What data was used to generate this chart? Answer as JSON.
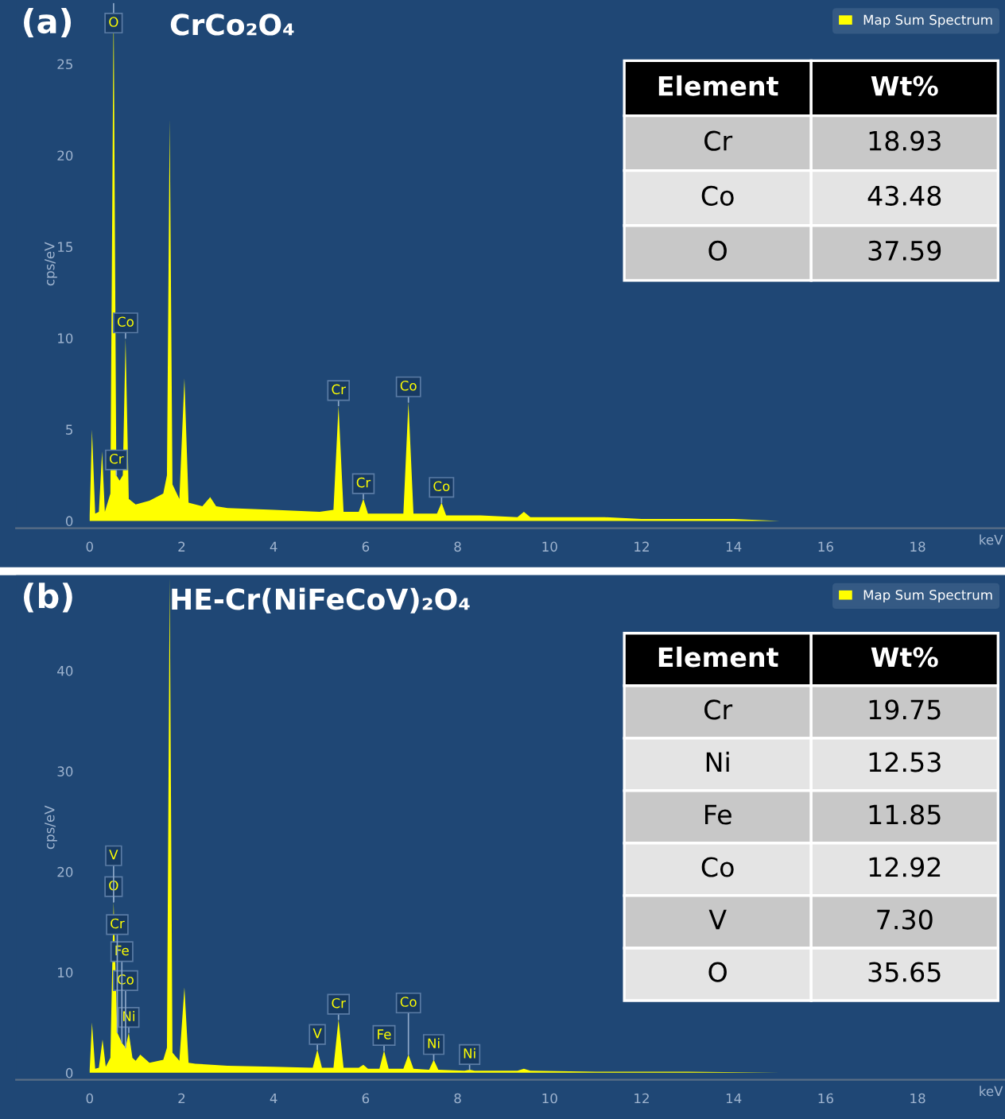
{
  "chart_data": [
    {
      "type": "area",
      "title": "(a)",
      "subtitle": "CrCo₂O₄",
      "xlabel": "keV",
      "ylabel": "cps/eV",
      "xlim": [
        -1.6,
        19.9
      ],
      "ylim": [
        -0.4,
        28.5
      ],
      "xticks": [
        0,
        2,
        4,
        6,
        8,
        10,
        12,
        14,
        16,
        18
      ],
      "yticks": [
        0,
        5,
        10,
        15,
        20,
        25
      ],
      "legend": "top right",
      "grid": false,
      "series": [
        {
          "name": "Map Sum Spectrum",
          "color": "#ffff00",
          "x": [
            0,
            0.05,
            0.12,
            0.2,
            0.27,
            0.33,
            0.45,
            0.52,
            0.58,
            0.65,
            0.72,
            0.78,
            0.85,
            1.0,
            1.3,
            1.6,
            1.68,
            1.74,
            1.8,
            1.95,
            2.06,
            2.15,
            2.3,
            2.45,
            2.62,
            2.75,
            3.0,
            4.0,
            5.0,
            5.3,
            5.41,
            5.52,
            5.85,
            5.95,
            6.05,
            6.5,
            6.82,
            6.93,
            7.04,
            7.55,
            7.65,
            7.75,
            8.5,
            9.3,
            9.44,
            9.58,
            10.5,
            11.2,
            12,
            13,
            14,
            15
          ],
          "values": [
            0.3,
            5,
            0.4,
            0.5,
            3.8,
            0.5,
            1.5,
            28.3,
            2.5,
            2.2,
            2.5,
            10,
            1.2,
            0.9,
            1.1,
            1.5,
            2.5,
            22,
            2,
            1.2,
            7.8,
            1.0,
            0.9,
            0.8,
            1.3,
            0.8,
            0.7,
            0.6,
            0.5,
            0.6,
            6.3,
            0.5,
            0.5,
            1.2,
            0.4,
            0.4,
            0.4,
            6.5,
            0.4,
            0.4,
            1.0,
            0.3,
            0.3,
            0.2,
            0.5,
            0.2,
            0.2,
            0.2,
            0.1,
            0.1,
            0.1,
            0
          ]
        }
      ],
      "annotations": [
        {
          "text": "O",
          "x": 0.52,
          "y": 28.3
        },
        {
          "text": "Co",
          "x": 0.78,
          "y": 10
        },
        {
          "text": "Cr",
          "x": 0.58,
          "y": 2.5
        },
        {
          "text": "Cr",
          "x": 5.41,
          "y": 6.3
        },
        {
          "text": "Cr",
          "x": 5.95,
          "y": 1.2
        },
        {
          "text": "Co",
          "x": 6.93,
          "y": 6.5
        },
        {
          "text": "Co",
          "x": 7.65,
          "y": 1.0
        },
        "Element",
        "Wt%",
        "Cr",
        "18.93",
        "Co",
        "43.48",
        "O",
        "37.59"
      ]
    },
    {
      "type": "area",
      "title": "(b)",
      "subtitle": "HE-Cr(NiFeCoV)₂O₄",
      "xlabel": "keV",
      "ylabel": "cps/eV",
      "xlim": [
        -1.6,
        19.9
      ],
      "ylim": [
        -0.7,
        49.5
      ],
      "xticks": [
        0,
        2,
        4,
        6,
        8,
        10,
        12,
        14,
        16,
        18
      ],
      "yticks": [
        0,
        10,
        20,
        30,
        40
      ],
      "legend": "top right",
      "grid": false,
      "series": [
        {
          "name": "Map Sum Spectrum",
          "color": "#ffff00",
          "x": [
            0,
            0.05,
            0.12,
            0.2,
            0.28,
            0.35,
            0.45,
            0.52,
            0.6,
            0.7,
            0.78,
            0.85,
            0.93,
            1.0,
            1.1,
            1.3,
            1.6,
            1.68,
            1.74,
            1.8,
            1.95,
            2.06,
            2.15,
            2.3,
            3.0,
            4.0,
            4.85,
            4.95,
            5.05,
            5.3,
            5.41,
            5.52,
            5.85,
            5.95,
            6.05,
            6.3,
            6.4,
            6.5,
            6.82,
            6.93,
            7.04,
            7.38,
            7.48,
            7.58,
            8.15,
            8.26,
            8.37,
            9.3,
            9.44,
            9.58,
            11,
            13,
            15
          ],
          "values": [
            0.3,
            5,
            0.4,
            0.5,
            3.3,
            0.6,
            1.5,
            17,
            4,
            3,
            2.5,
            4,
            1.5,
            1.2,
            1.8,
            1.0,
            1.3,
            2.5,
            49.3,
            2,
            1.2,
            8.5,
            1.0,
            0.9,
            0.7,
            0.6,
            0.5,
            2.3,
            0.5,
            0.5,
            5.3,
            0.5,
            0.5,
            0.8,
            0.4,
            0.4,
            2.2,
            0.4,
            0.4,
            1.8,
            0.4,
            0.3,
            1.3,
            0.3,
            0.2,
            0.3,
            0.2,
            0.2,
            0.4,
            0.2,
            0.1,
            0.1,
            0
          ]
        }
      ],
      "annotations": [
        {
          "text": "O",
          "x": 0.52,
          "y": 17
        },
        {
          "text": "V",
          "x": 0.52,
          "y": 17
        },
        {
          "text": "Ni",
          "x": 0.85,
          "y": 4
        },
        {
          "text": "Co",
          "x": 0.78,
          "y": 2.5
        },
        {
          "text": "Fe",
          "x": 0.7,
          "y": 3
        },
        {
          "text": "Cr",
          "x": 0.6,
          "y": 4
        },
        {
          "text": "V",
          "x": 4.95,
          "y": 2.3
        },
        {
          "text": "Cr",
          "x": 5.41,
          "y": 5.3
        },
        {
          "text": "Fe",
          "x": 6.4,
          "y": 2.2
        },
        {
          "text": "Co",
          "x": 6.93,
          "y": 1.8
        },
        {
          "text": "Ni",
          "x": 7.48,
          "y": 1.3
        },
        {
          "text": "Ni",
          "x": 8.26,
          "y": 0.3
        },
        "Element",
        "Wt%",
        "Cr",
        "19.75",
        "Ni",
        "12.53",
        "Fe",
        "11.85",
        "Co",
        "12.92",
        "V",
        "7.30",
        "O",
        "35.65"
      ]
    }
  ]
}
